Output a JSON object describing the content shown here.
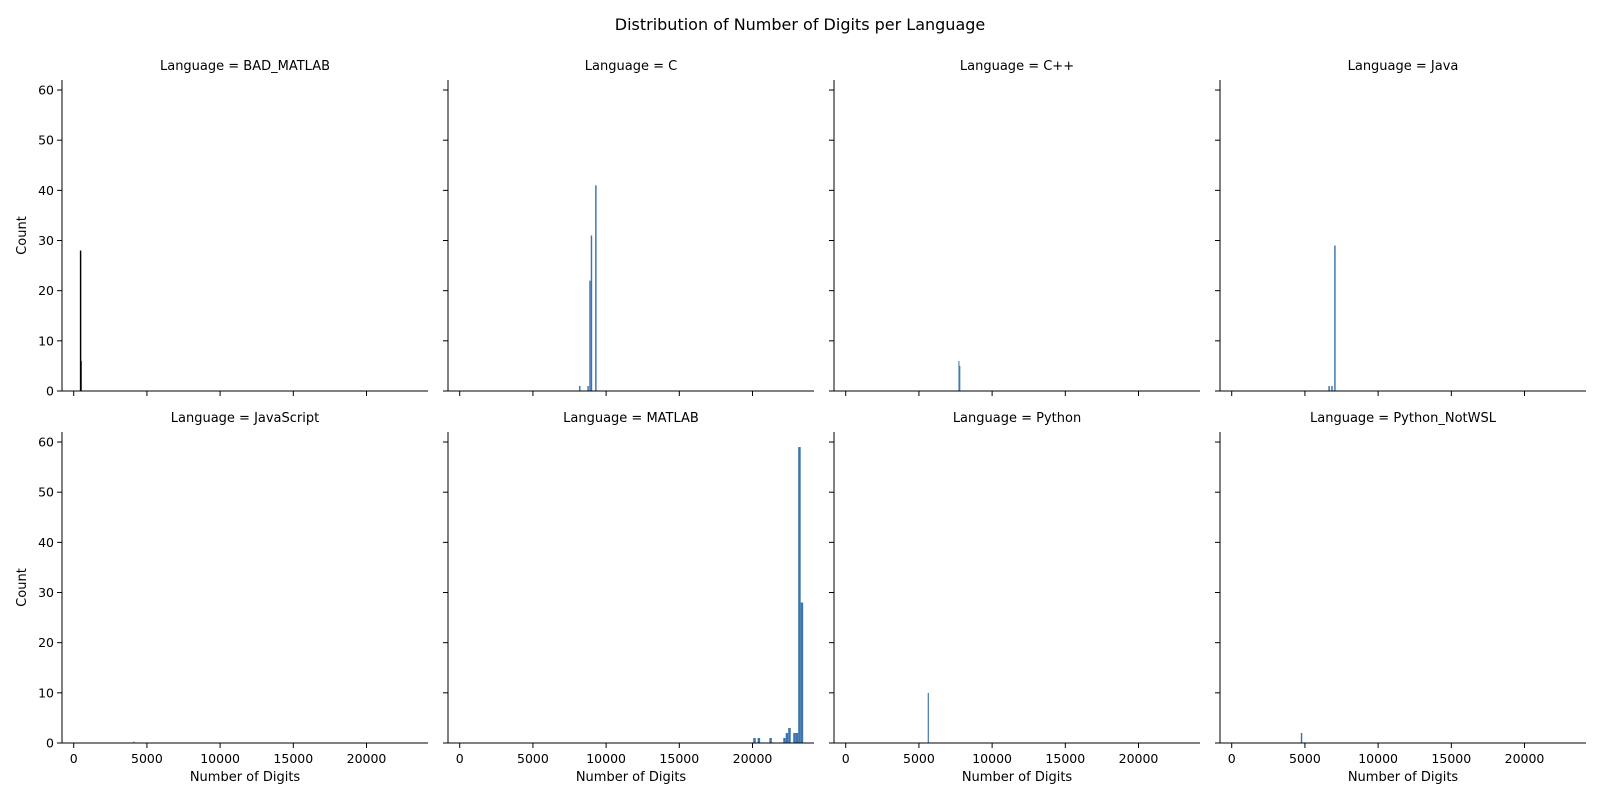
{
  "chart_data": {
    "type": "bar",
    "title": "Distribution of Number of Digits per Language",
    "xlabel": "Number of Digits",
    "ylabel": "Count",
    "xlim": [
      -800,
      24200
    ],
    "ylim": [
      0,
      62
    ],
    "xticks": [
      0,
      5000,
      10000,
      15000,
      20000
    ],
    "yticks": [
      0,
      10,
      20,
      30,
      40,
      50,
      60
    ],
    "bar_color": "#3b75af",
    "layout": {
      "rows": 2,
      "cols": 4
    },
    "panels": [
      {
        "title": "Language = BAD_MATLAB",
        "bar_color": "#000000",
        "bins": [
          {
            "x": 420,
            "w": 100,
            "y": 28
          },
          {
            "x": 480,
            "w": 60,
            "y": 6
          }
        ]
      },
      {
        "title": "Language = C",
        "bins": [
          {
            "x": 8150,
            "w": 100,
            "y": 1
          },
          {
            "x": 8720,
            "w": 100,
            "y": 1
          },
          {
            "x": 8850,
            "w": 100,
            "y": 22
          },
          {
            "x": 8950,
            "w": 100,
            "y": 31
          },
          {
            "x": 9250,
            "w": 100,
            "y": 41
          }
        ]
      },
      {
        "title": "Language = C++",
        "bins": [
          {
            "x": 7700,
            "w": 60,
            "y": 6
          },
          {
            "x": 7760,
            "w": 60,
            "y": 5
          }
        ]
      },
      {
        "title": "Language = Java",
        "bins": [
          {
            "x": 6600,
            "w": 100,
            "y": 1
          },
          {
            "x": 6800,
            "w": 100,
            "y": 1
          },
          {
            "x": 7000,
            "w": 100,
            "y": 29
          }
        ]
      },
      {
        "title": "Language = JavaScript",
        "bins": [
          {
            "x": 4080,
            "w": 40,
            "y": 0.3
          }
        ]
      },
      {
        "title": "Language = MATLAB",
        "bins": [
          {
            "x": 20050,
            "w": 170,
            "y": 1
          },
          {
            "x": 20350,
            "w": 170,
            "y": 1
          },
          {
            "x": 21150,
            "w": 170,
            "y": 1
          },
          {
            "x": 22100,
            "w": 170,
            "y": 1
          },
          {
            "x": 22270,
            "w": 170,
            "y": 2
          },
          {
            "x": 22440,
            "w": 170,
            "y": 3
          },
          {
            "x": 22780,
            "w": 170,
            "y": 2
          },
          {
            "x": 22950,
            "w": 170,
            "y": 2
          },
          {
            "x": 23120,
            "w": 170,
            "y": 59
          },
          {
            "x": 23290,
            "w": 170,
            "y": 28
          }
        ]
      },
      {
        "title": "Language = Python",
        "bins": [
          {
            "x": 5600,
            "w": 80,
            "y": 10
          }
        ]
      },
      {
        "title": "Language = Python_NotWSL",
        "bins": [
          {
            "x": 4720,
            "w": 100,
            "y": 2
          }
        ]
      }
    ]
  }
}
